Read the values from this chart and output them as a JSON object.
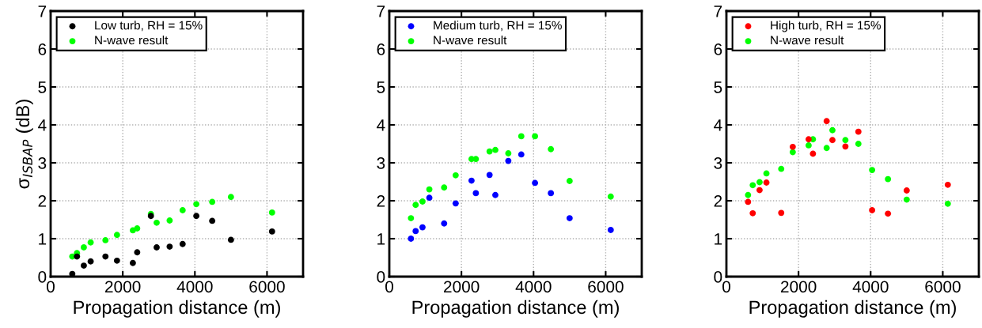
{
  "chart_data": [
    {
      "type": "scatter",
      "ylabel": "σ$_{ISBAP}$ (dB)",
      "xlabel": "Propagation distance (m)",
      "xlim": [
        0,
        7000
      ],
      "xticks": [
        0,
        2000,
        4000,
        6000
      ],
      "ylim": [
        0,
        7
      ],
      "yticks": [
        0,
        1,
        2,
        3,
        4,
        5,
        6,
        7
      ],
      "grid": true,
      "legend": "top left",
      "marker": "circle",
      "x": [
        600,
        730,
        920,
        1110,
        1520,
        1840,
        2280,
        2400,
        2780,
        2940,
        3300,
        3660,
        4040,
        4480,
        5000,
        6140
      ],
      "series": [
        {
          "name": "Low turb, RH = 15%",
          "color": "#000000",
          "values": [
            0.07,
            0.53,
            0.29,
            0.4,
            0.53,
            0.42,
            0.36,
            0.64,
            1.6,
            0.77,
            0.79,
            0.86,
            1.6,
            1.47,
            0.97,
            1.19
          ]
        },
        {
          "name": "N-wave result",
          "color": "#00ff00",
          "values": [
            0.53,
            0.62,
            0.77,
            0.9,
            0.96,
            1.1,
            1.22,
            1.27,
            1.65,
            1.42,
            1.48,
            1.75,
            1.91,
            1.97,
            2.1,
            1.69
          ]
        }
      ]
    },
    {
      "type": "scatter",
      "xlabel": "Propagation distance (m)",
      "xlim": [
        0,
        7000
      ],
      "xticks": [
        0,
        2000,
        4000,
        6000
      ],
      "ylim": [
        0,
        7
      ],
      "yticks": [
        0,
        1,
        2,
        3,
        4,
        5,
        6,
        7
      ],
      "grid": true,
      "legend": "top left",
      "marker": "circle",
      "x": [
        600,
        730,
        920,
        1110,
        1520,
        1840,
        2280,
        2400,
        2780,
        2940,
        3300,
        3660,
        4040,
        4480,
        5000,
        6140
      ],
      "series": [
        {
          "name": "Medium turb, RH = 15%",
          "color": "#0000ff",
          "values": [
            1.0,
            1.2,
            1.3,
            2.08,
            1.4,
            1.93,
            2.53,
            2.2,
            2.68,
            2.15,
            3.05,
            3.22,
            2.47,
            2.2,
            1.54,
            1.23
          ]
        },
        {
          "name": "N-wave result",
          "color": "#00ff00",
          "values": [
            1.54,
            1.89,
            1.98,
            2.3,
            2.35,
            2.67,
            3.1,
            3.1,
            3.3,
            3.34,
            3.25,
            3.7,
            3.7,
            3.36,
            2.52,
            2.11
          ]
        }
      ]
    },
    {
      "type": "scatter",
      "xlabel": "Propagation distance (m)",
      "xlim": [
        0,
        7000
      ],
      "xticks": [
        0,
        2000,
        4000,
        6000
      ],
      "ylim": [
        0,
        7
      ],
      "yticks": [
        0,
        1,
        2,
        3,
        4,
        5,
        6,
        7
      ],
      "grid": true,
      "legend": "top left",
      "marker": "circle",
      "x": [
        600,
        730,
        920,
        1110,
        1520,
        1840,
        2280,
        2400,
        2780,
        2940,
        3300,
        3660,
        4040,
        4480,
        5000,
        6140
      ],
      "series": [
        {
          "name": "High turb, RH = 15%",
          "color": "#ff0000",
          "values": [
            1.97,
            1.67,
            2.28,
            2.48,
            1.68,
            3.42,
            3.62,
            3.24,
            4.1,
            3.6,
            3.43,
            3.82,
            1.75,
            1.66,
            2.27,
            2.42
          ]
        },
        {
          "name": "N-wave result",
          "color": "#00ff00",
          "values": [
            2.15,
            2.41,
            2.49,
            2.72,
            2.84,
            3.28,
            3.46,
            3.62,
            3.39,
            3.86,
            3.6,
            3.5,
            2.81,
            2.57,
            2.03,
            1.92
          ]
        }
      ]
    }
  ]
}
